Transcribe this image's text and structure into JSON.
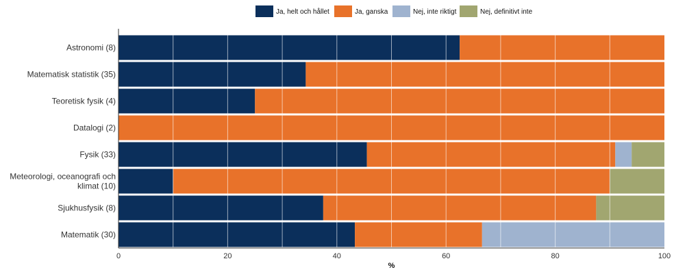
{
  "chart_data": {
    "type": "bar",
    "orientation": "horizontal",
    "stacked": true,
    "categories": [
      "Astronomi (8)",
      "Matematisk statistik (35)",
      "Teoretisk fysik (4)",
      "Datalogi (2)",
      "Fysik (33)",
      "Meteorologi, oceanografi och klimat (10)",
      "Sjukhusfysik (8)",
      "Matematik (30)"
    ],
    "category_lines": [
      [
        "Astronomi (8)"
      ],
      [
        "Matematisk statistik (35)"
      ],
      [
        "Teoretisk fysik (4)"
      ],
      [
        "Datalogi (2)"
      ],
      [
        "Fysik (33)"
      ],
      [
        "Meteorologi, oceanografi och",
        "klimat (10)"
      ],
      [
        "Sjukhusfysik (8)"
      ],
      [
        "Matematik (30)"
      ]
    ],
    "series": [
      {
        "name": "Ja, helt och hållet",
        "color": "#0b2f5b",
        "values": [
          62.5,
          34.3,
          25.0,
          0,
          45.5,
          10.0,
          37.5,
          43.3
        ]
      },
      {
        "name": "Ja, ganska",
        "color": "#e8722a",
        "values": [
          37.5,
          65.7,
          75.0,
          100,
          45.5,
          80.0,
          50.0,
          23.3
        ]
      },
      {
        "name": "Nej, inte riktigt",
        "color": "#9fb3cf",
        "values": [
          0,
          0,
          0,
          0,
          3.0,
          0,
          0,
          33.4
        ]
      },
      {
        "name": "Nej, definitivt inte",
        "color": "#a1a670",
        "values": [
          0,
          0,
          0,
          0,
          6.0,
          10.0,
          12.5,
          0
        ]
      }
    ],
    "xlim": [
      0,
      100
    ],
    "xticks": [
      0,
      20,
      40,
      60,
      80,
      100
    ],
    "xlabel": "%",
    "grid": true,
    "legend_position": "top-right"
  }
}
